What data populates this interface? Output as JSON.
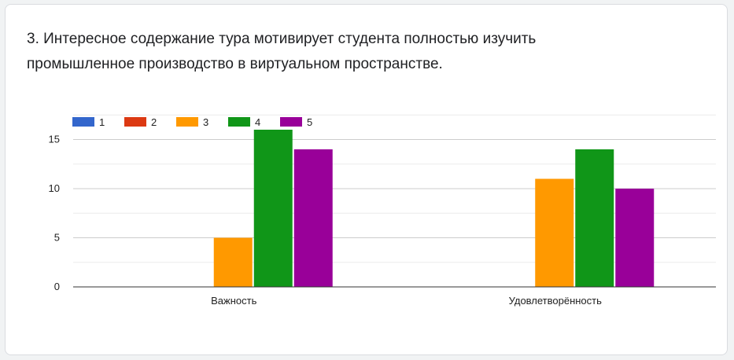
{
  "question": {
    "number": "3.",
    "text": "Интересное содержание тура мотивирует студента полностью изучить промышленное производство в виртуальном пространстве."
  },
  "chart_data": {
    "type": "bar",
    "title": "",
    "xlabel": "",
    "ylabel": "",
    "categories": [
      "Важность",
      "Удовлетворённость"
    ],
    "series": [
      {
        "name": "1",
        "color": "#3366cc",
        "values": [
          0,
          0
        ]
      },
      {
        "name": "2",
        "color": "#dc3912",
        "values": [
          0,
          0
        ]
      },
      {
        "name": "3",
        "color": "#ff9900",
        "values": [
          5,
          11
        ]
      },
      {
        "name": "4",
        "color": "#109618",
        "values": [
          16,
          14
        ]
      },
      {
        "name": "5",
        "color": "#990099",
        "values": [
          14,
          10
        ]
      }
    ],
    "ylim": [
      0,
      17.5
    ],
    "yticks": [
      "0",
      "5",
      "10",
      "15"
    ],
    "grid": true,
    "legend": "top-left"
  }
}
